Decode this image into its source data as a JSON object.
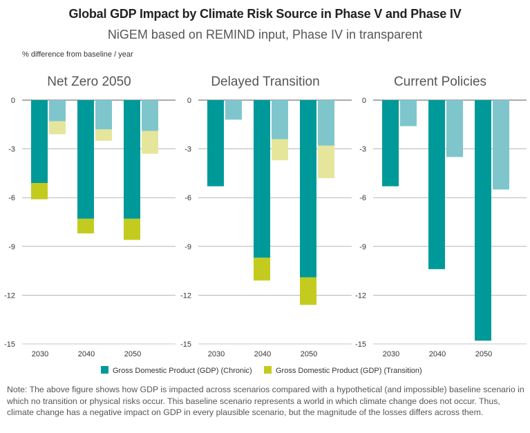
{
  "title": "Global GDP Impact by Climate Risk Source in Phase V and Phase IV",
  "subtitle": "NiGEM based on REMIND input, Phase IV in transparent",
  "units": "% difference from baseline / year",
  "note": "Note: The above figure shows how GDP is impacted across scenarios compared with a hypothetical (and impossible) baseline scenario in which no transition or physical risks occur. This baseline scenario represents a world in which climate change does not occur. Thus, climate change has a negative impact on GDP in every plausible scenario, but the magnitude of the losses differs across them.",
  "colors": {
    "chronic": "#009999",
    "chronic_phase4": "#7ec6cc",
    "transition": "#c3cc1e",
    "transition_phase4": "#e5e69c"
  },
  "chart_data": {
    "type": "bar",
    "stacked": true,
    "categories": [
      "2030",
      "2040",
      "2050"
    ],
    "ylim": [
      -15,
      0
    ],
    "yticks": [
      "0",
      "-3",
      "-6",
      "-9",
      "-12",
      "-15"
    ],
    "ytick_values": [
      0,
      -3,
      -6,
      -9,
      -12,
      -15
    ],
    "grid": true,
    "legend_position": "bottom",
    "legend": [
      {
        "name": "Gross Domestic Product (GDP) (Chronic)",
        "color": "#009999"
      },
      {
        "name": "Gross Domestic Product (GDP) (Transition)",
        "color": "#c3cc1e"
      }
    ],
    "panels": [
      {
        "title": "Net Zero 2050",
        "phase5": {
          "chronic": [
            -5.1,
            -7.3,
            -7.3
          ],
          "transition": [
            -1.0,
            -0.9,
            -1.3
          ]
        },
        "phase4": {
          "chronic": [
            -1.3,
            -1.8,
            -1.9
          ],
          "transition": [
            -0.8,
            -0.7,
            -1.4
          ]
        }
      },
      {
        "title": "Delayed Transition",
        "phase5": {
          "chronic": [
            -5.3,
            -9.7,
            -10.9
          ],
          "transition": [
            0,
            -1.4,
            -1.7
          ]
        },
        "phase4": {
          "chronic": [
            -1.2,
            -2.4,
            -2.8
          ],
          "transition": [
            0,
            -1.3,
            -2.0
          ]
        }
      },
      {
        "title": "Current Policies",
        "phase5": {
          "chronic": [
            -5.3,
            -10.4,
            -14.8
          ],
          "transition": [
            0,
            0,
            0
          ]
        },
        "phase4": {
          "chronic": [
            -1.6,
            -3.5,
            -5.5
          ],
          "transition": [
            0,
            0,
            0
          ]
        }
      }
    ]
  }
}
